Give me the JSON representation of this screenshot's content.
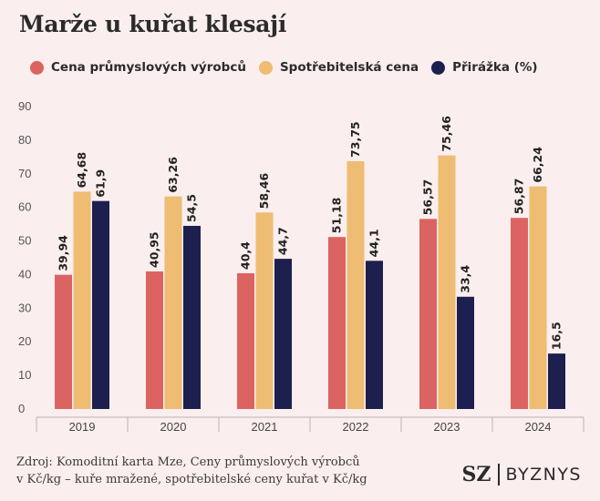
{
  "title": "Marže u kuřat klesají",
  "colors": {
    "cena": "#db6462",
    "spotr": "#eebc72",
    "prirazka": "#1d1f4f"
  },
  "chart_data": {
    "type": "bar",
    "categories": [
      "2019",
      "2020",
      "2021",
      "2022",
      "2023",
      "2024"
    ],
    "series": [
      {
        "name": "Cena průmyslových výrobců",
        "values": [
          39.94,
          40.95,
          40.4,
          51.18,
          56.57,
          56.87
        ],
        "labels": [
          "39,94",
          "40,95",
          "40,4",
          "51,18",
          "56,57",
          "56,87"
        ]
      },
      {
        "name": "Spotřebitelská cena",
        "values": [
          64.68,
          63.26,
          58.46,
          73.75,
          75.46,
          66.24
        ],
        "labels": [
          "64,68",
          "63,26",
          "58,46",
          "73,75",
          "75,46",
          "66,24"
        ]
      },
      {
        "name": "Přirážka (%)",
        "values": [
          61.9,
          54.5,
          44.7,
          44.1,
          33.4,
          16.5
        ],
        "labels": [
          "61,9",
          "54,5",
          "44,7",
          "44,1",
          "33,4",
          "16,5"
        ]
      }
    ],
    "yticks": [
      "0",
      "10",
      "20",
      "30",
      "40",
      "50",
      "60",
      "70",
      "80",
      "90"
    ],
    "ylim": [
      0,
      90
    ],
    "grid": false,
    "legend": "top"
  },
  "source": {
    "line1": "Zdroj: Komoditní karta Mze, Ceny průmyslových výrobců",
    "line2": "v Kč/kg – kuře mražené, spotřebitelské ceny kuřat v Kč/kg"
  },
  "brand": {
    "sz": "SZ",
    "byznys": "BYZNYS"
  }
}
